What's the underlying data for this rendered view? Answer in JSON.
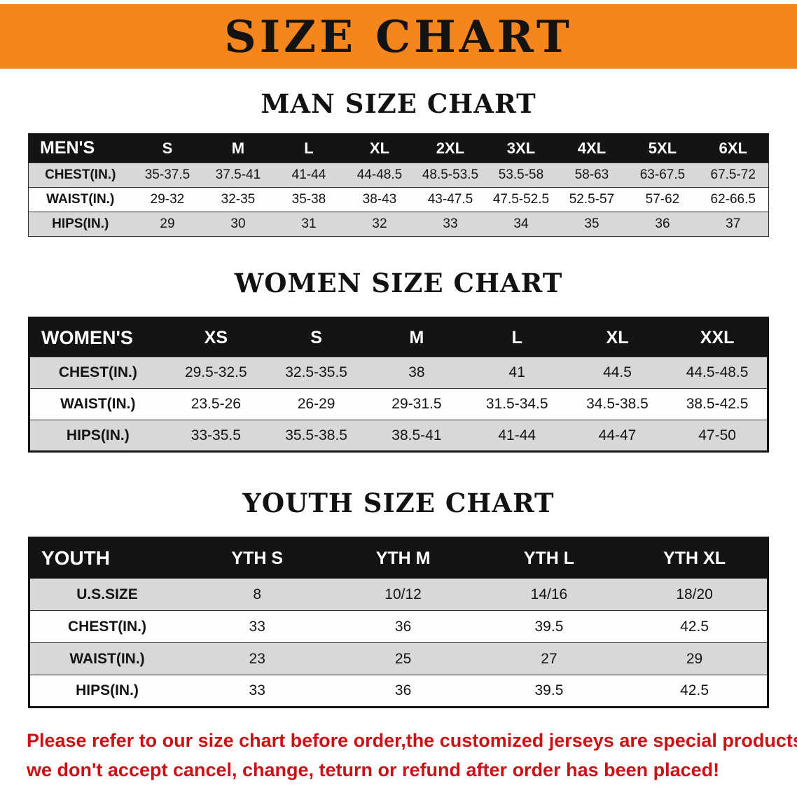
{
  "banner": {
    "title": "SIZE CHART"
  },
  "colors": {
    "banner_orange": "#f5861d",
    "header_black": "#141414",
    "stripe_gray": "#d8d8d8",
    "notice_red": "#cc1016"
  },
  "chart_data": [
    {
      "type": "table",
      "title": "MAN SIZE CHART",
      "columns": [
        "MEN'S",
        "S",
        "M",
        "L",
        "XL",
        "2XL",
        "3XL",
        "4XL",
        "5XL",
        "6XL"
      ],
      "rows": [
        [
          "CHEST(IN.)",
          "35-37.5",
          "37.5-41",
          "41-44",
          "44-48.5",
          "48.5-53.5",
          "53.5-58",
          "58-63",
          "63-67.5",
          "67.5-72"
        ],
        [
          "WAIST(IN.)",
          "29-32",
          "32-35",
          "35-38",
          "38-43",
          "43-47.5",
          "47.5-52.5",
          "52.5-57",
          "57-62",
          "62-66.5"
        ],
        [
          "HIPS(IN.)",
          "29",
          "30",
          "31",
          "32",
          "33",
          "34",
          "35",
          "36",
          "37"
        ]
      ]
    },
    {
      "type": "table",
      "title": "WOMEN SIZE CHART",
      "columns": [
        "WOMEN'S",
        "XS",
        "S",
        "M",
        "L",
        "XL",
        "XXL"
      ],
      "rows": [
        [
          "CHEST(IN.)",
          "29.5-32.5",
          "32.5-35.5",
          "38",
          "41",
          "44.5",
          "44.5-48.5"
        ],
        [
          "WAIST(IN.)",
          "23.5-26",
          "26-29",
          "29-31.5",
          "31.5-34.5",
          "34.5-38.5",
          "38.5-42.5"
        ],
        [
          "HIPS(IN.)",
          "33-35.5",
          "35.5-38.5",
          "38.5-41",
          "41-44",
          "44-47",
          "47-50"
        ]
      ]
    },
    {
      "type": "table",
      "title": "YOUTH SIZE CHART",
      "columns": [
        "YOUTH",
        "YTH S",
        "YTH M",
        "YTH L",
        "YTH XL"
      ],
      "rows": [
        [
          "U.S.SIZE",
          "8",
          "10/12",
          "14/16",
          "18/20"
        ],
        [
          "CHEST(IN.)",
          "33",
          "36",
          "39.5",
          "42.5"
        ],
        [
          "WAIST(IN.)",
          "23",
          "25",
          "27",
          "29"
        ],
        [
          "HIPS(IN.)",
          "33",
          "36",
          "39.5",
          "42.5"
        ]
      ]
    }
  ],
  "footer": {
    "line1": "Please refer to our size chart before order,the customized jerseys are special products,",
    "line2": "we don't accept cancel, change, teturn or refund after order has been placed!"
  }
}
